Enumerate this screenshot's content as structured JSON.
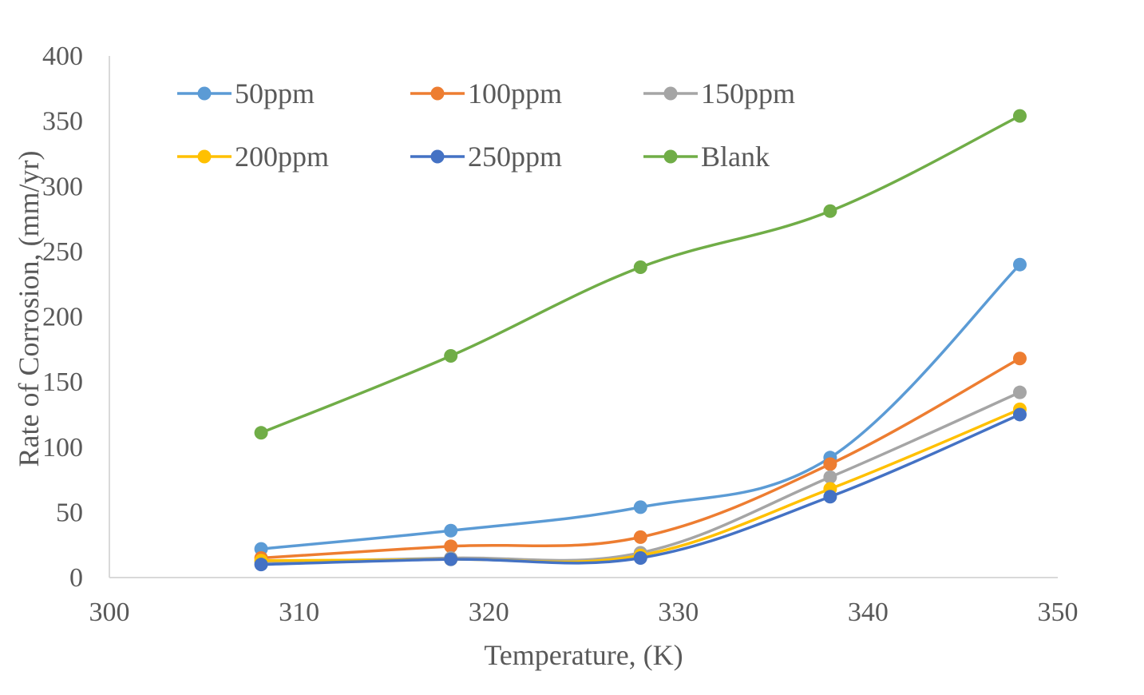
{
  "chart_data": {
    "type": "line",
    "title": "",
    "xlabel": "Temperature, (K)",
    "ylabel": "Rate of Corrosion, (mm/yr)",
    "xlim": [
      300,
      350
    ],
    "ylim": [
      0,
      400
    ],
    "xticks": [
      "300",
      "310",
      "320",
      "330",
      "340",
      "350"
    ],
    "yticks": [
      "0",
      "50",
      "100",
      "150",
      "200",
      "250",
      "300",
      "350",
      "400"
    ],
    "x": [
      308,
      318,
      328,
      338,
      348
    ],
    "grid": false,
    "legend_position": "top",
    "series": [
      {
        "name": "50ppm",
        "color": "#5B9BD5",
        "values": [
          22,
          36,
          54,
          92,
          240
        ]
      },
      {
        "name": "100ppm",
        "color": "#ED7D31",
        "values": [
          15,
          24,
          31,
          87,
          168
        ]
      },
      {
        "name": "150ppm",
        "color": "#A5A5A5",
        "values": [
          12,
          15,
          19,
          77,
          142
        ]
      },
      {
        "name": "200ppm",
        "color": "#FFC000",
        "values": [
          13,
          14,
          17,
          68,
          129
        ]
      },
      {
        "name": "250ppm",
        "color": "#4472C4",
        "values": [
          10,
          14,
          15,
          62,
          125
        ]
      },
      {
        "name": "Blank",
        "color": "#70AD47",
        "values": [
          111,
          170,
          238,
          281,
          354
        ]
      }
    ]
  }
}
